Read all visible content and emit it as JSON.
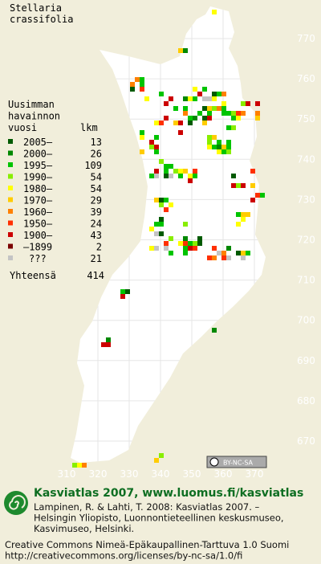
{
  "title": [
    "Stellaria",
    "crassifolia"
  ],
  "legend": {
    "heading": [
      "Uusimman",
      "havainnon",
      "vuosi"
    ],
    "count_heading": "lkm",
    "entries": [
      {
        "label": "2005–",
        "count": 13,
        "color": "#005a00"
      },
      {
        "label": "2000–",
        "count": 26,
        "color": "#008800"
      },
      {
        "label": "1995–",
        "count": 109,
        "color": "#00c400"
      },
      {
        "label": "1990–",
        "count": 54,
        "color": "#88ee00"
      },
      {
        "label": "1980–",
        "count": 54,
        "color": "#ffff00"
      },
      {
        "label": "1970–",
        "count": 29,
        "color": "#ffcc00"
      },
      {
        "label": "1960–",
        "count": 39,
        "color": "#ff8000"
      },
      {
        "label": "1950–",
        "count": 24,
        "color": "#ff3000"
      },
      {
        "label": "1900–",
        "count": 43,
        "color": "#cc0000"
      },
      {
        "label": "–1899",
        "count": 2,
        "color": "#7a0000"
      },
      {
        "label": "???",
        "count": 21,
        "color": "#c4c4c4"
      }
    ],
    "total_label": "Yhteensä",
    "total": 414
  },
  "grid": {
    "x_labels": [
      310,
      320,
      330,
      340,
      350,
      360,
      370
    ],
    "y_labels": [
      670,
      680,
      690,
      700,
      710,
      720,
      730,
      740,
      750,
      760,
      770
    ]
  },
  "cc_badge": "BY-NC-SA",
  "footer": {
    "headline": "Kasviatlas 2007, www.luomus.fi/kasviatlas",
    "citation": [
      "Lampinen, R. & Lahti, T. 2008: Kasviatlas 2007. –",
      "Helsingin Yliopisto, Luonnontieteellinen keskusmuseo,",
      "Kasvimuseo, Helsinki."
    ],
    "license": [
      "Creative Commons Nimeä-Epäkaupallinen-Tarttuva 1.0 Suomi",
      "http://creativecommons.org/licenses/by-nc-sa/1.0/fi"
    ]
  }
}
